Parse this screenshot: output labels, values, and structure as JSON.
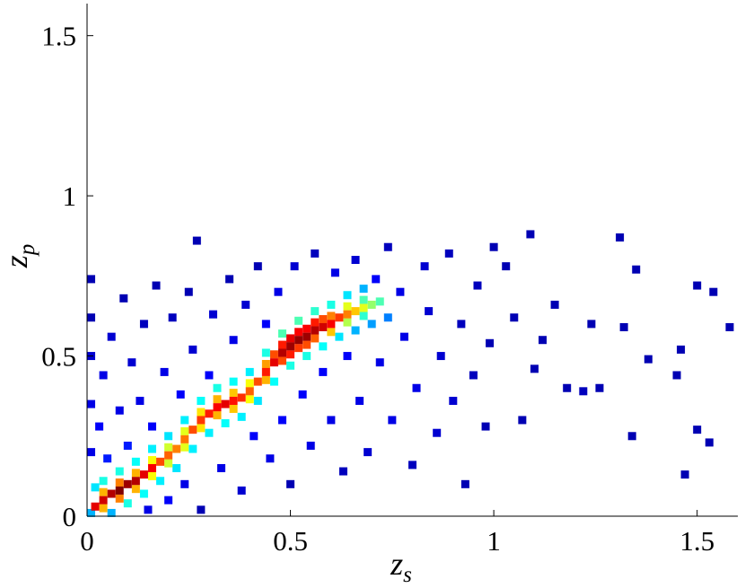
{
  "chart_data": {
    "type": "density-scatter",
    "colormap": "jet",
    "x_label": "z",
    "x_label_sub": "s",
    "y_label": "z",
    "y_label_sub": "p",
    "xlim": [
      0,
      1.6
    ],
    "ylim": [
      0,
      1.6
    ],
    "xticks": [
      0,
      0.5,
      1,
      1.5
    ],
    "yticks": [
      0,
      0.5,
      1,
      1.5
    ],
    "points": [
      [
        0.01,
        0.2,
        0.1
      ],
      [
        0.01,
        0.35,
        0.1
      ],
      [
        0.01,
        0.5,
        0.08
      ],
      [
        0.01,
        0.62,
        0.05
      ],
      [
        0.01,
        0.74,
        0.05
      ],
      [
        0.03,
        0.28,
        0.12
      ],
      [
        0.04,
        0.44,
        0.1
      ],
      [
        0.05,
        0.18,
        0.15
      ],
      [
        0.06,
        0.56,
        0.08
      ],
      [
        0.08,
        0.33,
        0.1
      ],
      [
        0.09,
        0.68,
        0.05
      ],
      [
        0.1,
        0.22,
        0.15
      ],
      [
        0.11,
        0.48,
        0.08
      ],
      [
        0.13,
        0.36,
        0.1
      ],
      [
        0.14,
        0.6,
        0.06
      ],
      [
        0.15,
        0.02,
        0.1
      ],
      [
        0.16,
        0.28,
        0.12
      ],
      [
        0.17,
        0.72,
        0.05
      ],
      [
        0.19,
        0.45,
        0.1
      ],
      [
        0.2,
        0.05,
        0.12
      ],
      [
        0.21,
        0.62,
        0.06
      ],
      [
        0.23,
        0.38,
        0.12
      ],
      [
        0.24,
        0.1,
        0.1
      ],
      [
        0.25,
        0.7,
        0.05
      ],
      [
        0.26,
        0.52,
        0.08
      ],
      [
        0.27,
        0.86,
        0.05
      ],
      [
        0.28,
        0.02,
        0.05
      ],
      [
        0.3,
        0.44,
        0.12
      ],
      [
        0.31,
        0.63,
        0.08
      ],
      [
        0.33,
        0.15,
        0.1
      ],
      [
        0.35,
        0.74,
        0.05
      ],
      [
        0.36,
        0.55,
        0.1
      ],
      [
        0.38,
        0.08,
        0.08
      ],
      [
        0.39,
        0.66,
        0.08
      ],
      [
        0.41,
        0.25,
        0.12
      ],
      [
        0.42,
        0.78,
        0.05
      ],
      [
        0.44,
        0.6,
        0.12
      ],
      [
        0.45,
        0.18,
        0.1
      ],
      [
        0.47,
        0.7,
        0.1
      ],
      [
        0.48,
        0.3,
        0.12
      ],
      [
        0.5,
        0.1,
        0.05
      ],
      [
        0.51,
        0.78,
        0.08
      ],
      [
        0.53,
        0.38,
        0.12
      ],
      [
        0.55,
        0.22,
        0.1
      ],
      [
        0.56,
        0.82,
        0.06
      ],
      [
        0.58,
        0.45,
        0.12
      ],
      [
        0.6,
        0.3,
        0.1
      ],
      [
        0.61,
        0.76,
        0.1
      ],
      [
        0.63,
        0.14,
        0.06
      ],
      [
        0.64,
        0.5,
        0.12
      ],
      [
        0.66,
        0.8,
        0.08
      ],
      [
        0.67,
        0.36,
        0.1
      ],
      [
        0.69,
        0.2,
        0.08
      ],
      [
        0.71,
        0.74,
        0.12
      ],
      [
        0.72,
        0.48,
        0.1
      ],
      [
        0.74,
        0.84,
        0.06
      ],
      [
        0.75,
        0.3,
        0.1
      ],
      [
        0.77,
        0.7,
        0.1
      ],
      [
        0.78,
        0.56,
        0.1
      ],
      [
        0.8,
        0.16,
        0.06
      ],
      [
        0.81,
        0.4,
        0.1
      ],
      [
        0.83,
        0.78,
        0.08
      ],
      [
        0.84,
        0.64,
        0.08
      ],
      [
        0.86,
        0.26,
        0.08
      ],
      [
        0.87,
        0.5,
        0.08
      ],
      [
        0.89,
        0.82,
        0.06
      ],
      [
        0.9,
        0.36,
        0.08
      ],
      [
        0.92,
        0.6,
        0.06
      ],
      [
        0.93,
        0.1,
        0.05
      ],
      [
        0.95,
        0.44,
        0.06
      ],
      [
        0.96,
        0.72,
        0.06
      ],
      [
        0.98,
        0.28,
        0.05
      ],
      [
        0.99,
        0.54,
        0.05
      ],
      [
        1.0,
        0.84,
        0.05
      ],
      [
        1.03,
        0.78,
        0.05
      ],
      [
        1.05,
        0.62,
        0.05
      ],
      [
        1.07,
        0.3,
        0.05
      ],
      [
        1.09,
        0.88,
        0.05
      ],
      [
        1.1,
        0.46,
        0.05
      ],
      [
        1.12,
        0.55,
        0.05
      ],
      [
        1.15,
        0.66,
        0.05
      ],
      [
        1.18,
        0.4,
        0.05
      ],
      [
        1.22,
        0.39,
        0.06
      ],
      [
        1.24,
        0.6,
        0.05
      ],
      [
        1.26,
        0.4,
        0.05
      ],
      [
        1.31,
        0.87,
        0.05
      ],
      [
        1.32,
        0.59,
        0.05
      ],
      [
        1.34,
        0.25,
        0.05
      ],
      [
        1.35,
        0.77,
        0.05
      ],
      [
        1.38,
        0.49,
        0.05
      ],
      [
        1.45,
        0.44,
        0.05
      ],
      [
        1.46,
        0.52,
        0.05
      ],
      [
        1.47,
        0.13,
        0.05
      ],
      [
        1.5,
        0.72,
        0.05
      ],
      [
        1.5,
        0.27,
        0.05
      ],
      [
        1.53,
        0.23,
        0.05
      ],
      [
        1.54,
        0.7,
        0.05
      ],
      [
        1.58,
        0.59,
        0.05
      ],
      [
        0.04,
        0.11,
        0.4
      ],
      [
        0.08,
        0.14,
        0.4
      ],
      [
        0.12,
        0.17,
        0.38
      ],
      [
        0.16,
        0.21,
        0.36
      ],
      [
        0.2,
        0.25,
        0.35
      ],
      [
        0.24,
        0.3,
        0.36
      ],
      [
        0.28,
        0.36,
        0.38
      ],
      [
        0.32,
        0.4,
        0.4
      ],
      [
        0.36,
        0.42,
        0.38
      ],
      [
        0.4,
        0.45,
        0.36
      ],
      [
        0.44,
        0.51,
        0.4
      ],
      [
        0.48,
        0.57,
        0.45
      ],
      [
        0.52,
        0.61,
        0.45
      ],
      [
        0.56,
        0.64,
        0.42
      ],
      [
        0.6,
        0.66,
        0.4
      ],
      [
        0.64,
        0.69,
        0.35
      ],
      [
        0.68,
        0.71,
        0.3
      ],
      [
        0.1,
        0.04,
        0.4
      ],
      [
        0.14,
        0.07,
        0.38
      ],
      [
        0.18,
        0.11,
        0.36
      ],
      [
        0.22,
        0.15,
        0.35
      ],
      [
        0.26,
        0.21,
        0.36
      ],
      [
        0.3,
        0.26,
        0.36
      ],
      [
        0.34,
        0.29,
        0.38
      ],
      [
        0.38,
        0.31,
        0.36
      ],
      [
        0.42,
        0.36,
        0.35
      ],
      [
        0.46,
        0.42,
        0.38
      ],
      [
        0.5,
        0.47,
        0.4
      ],
      [
        0.54,
        0.5,
        0.4
      ],
      [
        0.58,
        0.53,
        0.38
      ],
      [
        0.62,
        0.56,
        0.35
      ],
      [
        0.66,
        0.58,
        0.3
      ],
      [
        0.7,
        0.6,
        0.28
      ],
      [
        0.74,
        0.62,
        0.25
      ],
      [
        0.02,
        0.09,
        0.35
      ],
      [
        0.01,
        0.01,
        0.3
      ],
      [
        0.06,
        0.01,
        0.3
      ],
      [
        0.04,
        0.075,
        0.7
      ],
      [
        0.04,
        0.025,
        0.7
      ],
      [
        0.08,
        0.105,
        0.75
      ],
      [
        0.08,
        0.055,
        0.75
      ],
      [
        0.12,
        0.135,
        0.7
      ],
      [
        0.12,
        0.085,
        0.7
      ],
      [
        0.16,
        0.175,
        0.62
      ],
      [
        0.16,
        0.125,
        0.62
      ],
      [
        0.2,
        0.215,
        0.58
      ],
      [
        0.2,
        0.165,
        0.58
      ],
      [
        0.24,
        0.265,
        0.6
      ],
      [
        0.24,
        0.215,
        0.6
      ],
      [
        0.28,
        0.325,
        0.65
      ],
      [
        0.28,
        0.275,
        0.65
      ],
      [
        0.32,
        0.365,
        0.7
      ],
      [
        0.32,
        0.315,
        0.7
      ],
      [
        0.36,
        0.385,
        0.68
      ],
      [
        0.36,
        0.335,
        0.68
      ],
      [
        0.4,
        0.415,
        0.62
      ],
      [
        0.4,
        0.365,
        0.62
      ],
      [
        0.44,
        0.475,
        0.72
      ],
      [
        0.44,
        0.425,
        0.7
      ],
      [
        0.48,
        0.535,
        0.85
      ],
      [
        0.48,
        0.485,
        0.8
      ],
      [
        0.52,
        0.575,
        0.88
      ],
      [
        0.52,
        0.525,
        0.82
      ],
      [
        0.56,
        0.605,
        0.85
      ],
      [
        0.56,
        0.555,
        0.78
      ],
      [
        0.6,
        0.625,
        0.75
      ],
      [
        0.6,
        0.575,
        0.68
      ],
      [
        0.64,
        0.655,
        0.6
      ],
      [
        0.64,
        0.605,
        0.55
      ],
      [
        0.68,
        0.675,
        0.45
      ],
      [
        0.68,
        0.625,
        0.42
      ],
      [
        0.5,
        0.555,
        0.9
      ],
      [
        0.54,
        0.585,
        0.88
      ],
      [
        0.58,
        0.615,
        0.8
      ],
      [
        0.46,
        0.505,
        0.8
      ],
      [
        0.5,
        0.505,
        0.85
      ],
      [
        0.54,
        0.535,
        0.8
      ],
      [
        0.02,
        0.03,
        0.9
      ],
      [
        0.04,
        0.05,
        0.92
      ],
      [
        0.06,
        0.07,
        0.95
      ],
      [
        0.08,
        0.08,
        1
      ],
      [
        0.1,
        0.1,
        0.97
      ],
      [
        0.12,
        0.11,
        0.95
      ],
      [
        0.14,
        0.13,
        0.9
      ],
      [
        0.16,
        0.15,
        0.88
      ],
      [
        0.18,
        0.17,
        0.8
      ],
      [
        0.2,
        0.19,
        0.78
      ],
      [
        0.22,
        0.21,
        0.75
      ],
      [
        0.24,
        0.24,
        0.76
      ],
      [
        0.26,
        0.27,
        0.8
      ],
      [
        0.28,
        0.3,
        0.82
      ],
      [
        0.3,
        0.32,
        0.85
      ],
      [
        0.32,
        0.34,
        0.88
      ],
      [
        0.34,
        0.35,
        0.9
      ],
      [
        0.36,
        0.36,
        0.86
      ],
      [
        0.38,
        0.37,
        0.83
      ],
      [
        0.4,
        0.39,
        0.78
      ],
      [
        0.42,
        0.42,
        0.8
      ],
      [
        0.44,
        0.45,
        0.85
      ],
      [
        0.46,
        0.48,
        0.9
      ],
      [
        0.48,
        0.51,
        0.95
      ],
      [
        0.5,
        0.53,
        0.97
      ],
      [
        0.52,
        0.55,
        0.98
      ],
      [
        0.54,
        0.56,
        0.97
      ],
      [
        0.56,
        0.58,
        0.95
      ],
      [
        0.58,
        0.59,
        0.92
      ],
      [
        0.6,
        0.6,
        0.88
      ],
      [
        0.62,
        0.62,
        0.82
      ],
      [
        0.64,
        0.63,
        0.75
      ],
      [
        0.66,
        0.64,
        0.68
      ],
      [
        0.68,
        0.65,
        0.6
      ],
      [
        0.7,
        0.66,
        0.52
      ],
      [
        0.72,
        0.67,
        0.45
      ]
    ]
  }
}
